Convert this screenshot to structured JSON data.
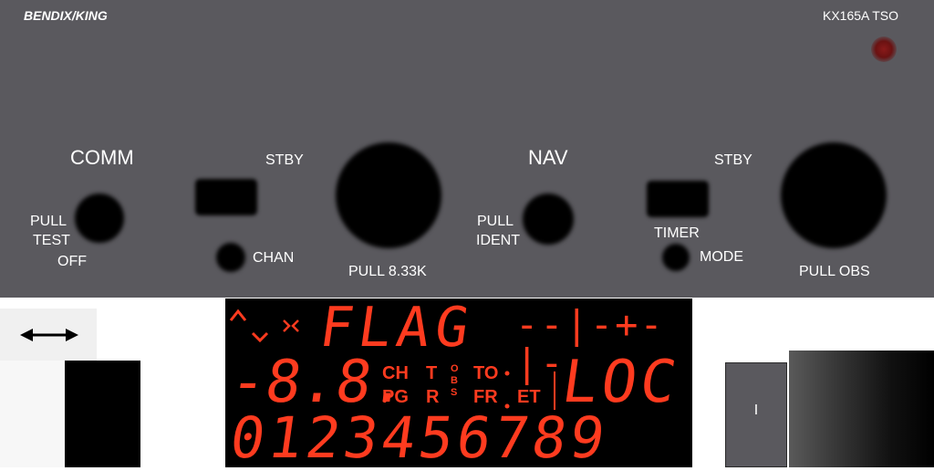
{
  "panel": {
    "brand": "BENDIX/KING",
    "model": "KX165A TSO",
    "comm": {
      "title": "COMM",
      "stby": "STBY",
      "pull_test": [
        "PULL",
        "TEST"
      ],
      "off": "OFF",
      "chan": "CHAN",
      "pull_833k": "PULL 8.33K"
    },
    "nav": {
      "title": "NAV",
      "stby": "STBY",
      "pull_ident": [
        "PULL",
        "IDENT"
      ],
      "timer": "TIMER",
      "mode": "MODE",
      "pull_obs": "PULL OBS"
    }
  },
  "display": {
    "flag": "FLAG",
    "dash_row": "--|-+-|-",
    "big_left": "-8.8.",
    "ch": "CH",
    "pg": "PG",
    "t": "T",
    "r": "R",
    "obs": [
      "O",
      "B",
      "S"
    ],
    "to": "TO",
    "fr": "FR",
    "et": "ET",
    "loc": "LOC",
    "digits": "0123456789"
  },
  "side": {
    "gray_label": "I"
  },
  "colors": {
    "panel": "#5a595e",
    "segment": "#ff3b1f"
  }
}
